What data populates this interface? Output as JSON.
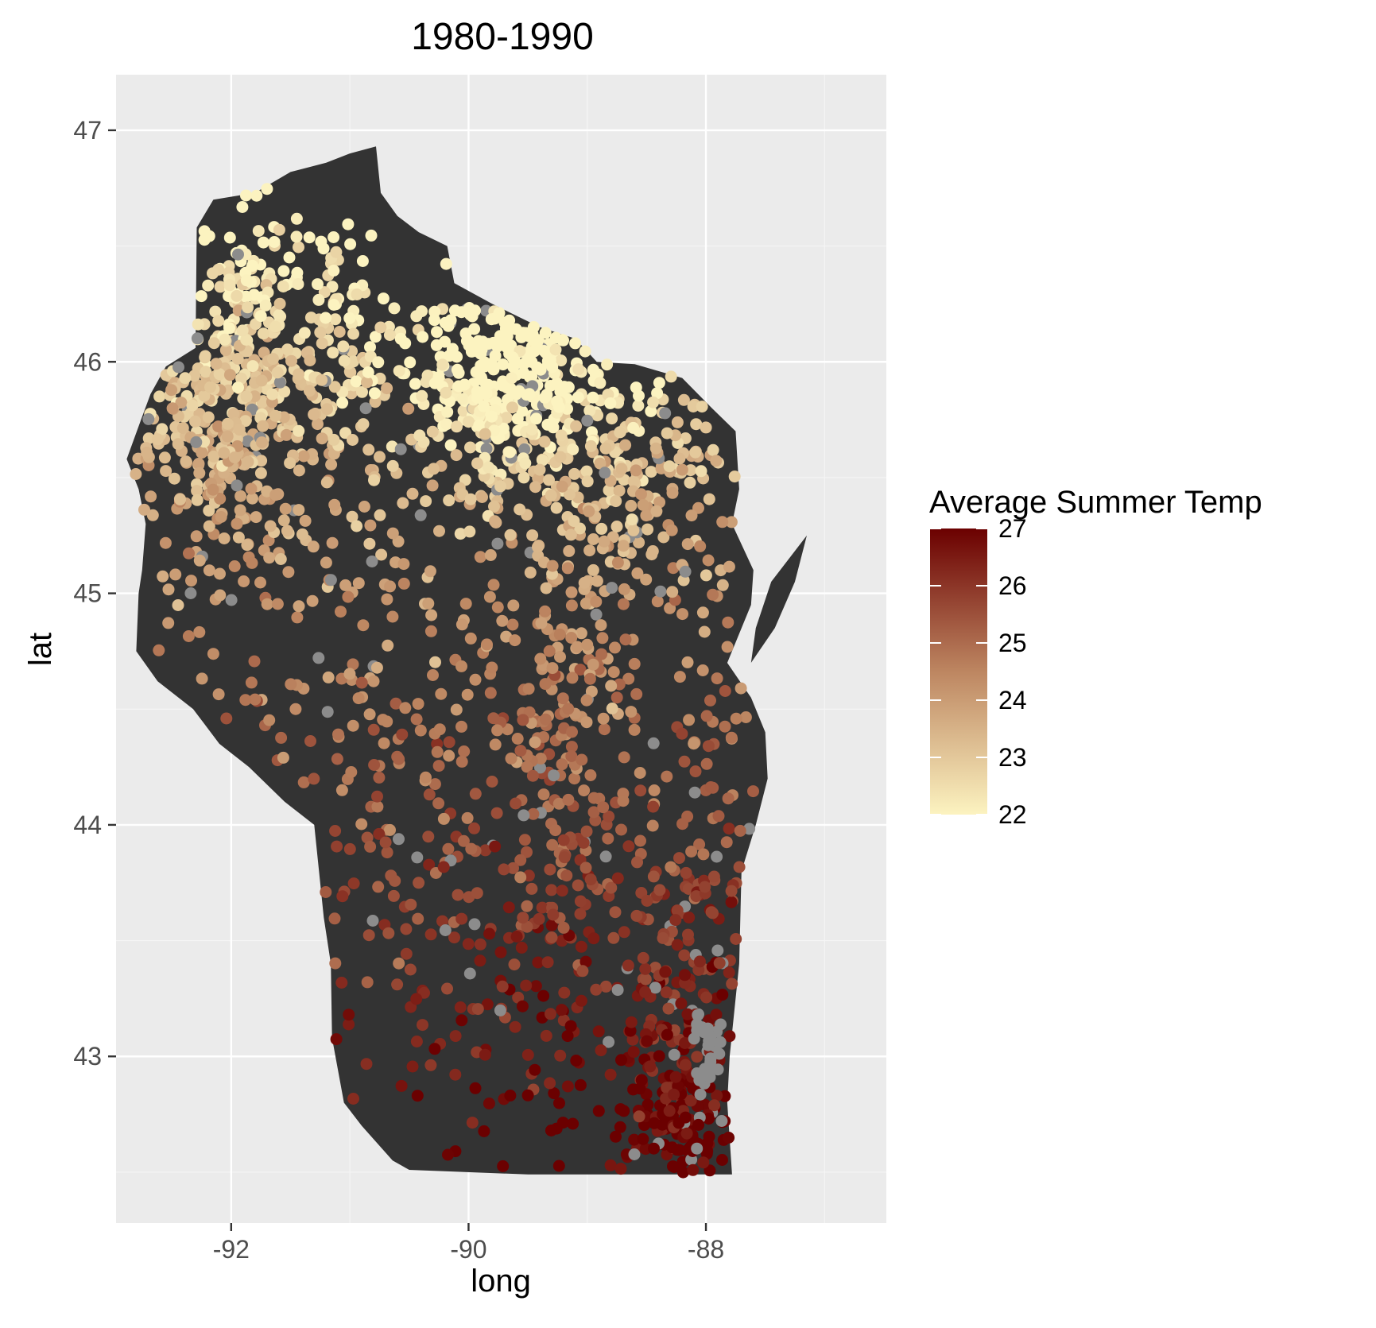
{
  "chart_data": {
    "type": "scatter",
    "title": "1980-1990",
    "xlabel": "long",
    "ylabel": "lat",
    "xlim": [
      -92.97,
      -86.48
    ],
    "ylim": [
      42.28,
      47.24
    ],
    "x_ticks": [
      -92,
      -90,
      -88
    ],
    "y_ticks": [
      43,
      44,
      45,
      46,
      47
    ],
    "x_tick_labels": [
      "-92",
      "-90",
      "-88"
    ],
    "y_tick_labels": [
      "43",
      "44",
      "45",
      "46",
      "47"
    ],
    "grid": true,
    "legend": {
      "title": "Average Summer Temp",
      "placement": "right",
      "min": 22,
      "max": 27,
      "labels": [
        "27",
        "26",
        "25",
        "24",
        "23",
        "22"
      ],
      "values": [
        27,
        26,
        25,
        24,
        23,
        22
      ]
    },
    "colors": {
      "panel_background": "#ebebeb",
      "grid_major": "#ffffff",
      "grid_minor": "#f5f5f5",
      "region_fill": "#333333",
      "missing_value": "#8c8c8c",
      "scale_low": "#fcf3c0",
      "scale_mid": "#bd8661",
      "scale_high": "#6b0000"
    },
    "region_outline": [
      [
        -92.88,
        45.58
      ],
      [
        -92.76,
        45.75
      ],
      [
        -92.68,
        45.86
      ],
      [
        -92.55,
        45.98
      ],
      [
        -92.3,
        46.06
      ],
      [
        -92.29,
        46.58
      ],
      [
        -92.15,
        46.7
      ],
      [
        -91.8,
        46.73
      ],
      [
        -91.5,
        46.82
      ],
      [
        -91.2,
        46.86
      ],
      [
        -91.0,
        46.9
      ],
      [
        -90.78,
        46.93
      ],
      [
        -90.74,
        46.73
      ],
      [
        -90.6,
        46.63
      ],
      [
        -90.42,
        46.56
      ],
      [
        -90.18,
        46.5
      ],
      [
        -90.12,
        46.34
      ],
      [
        -89.8,
        46.25
      ],
      [
        -89.4,
        46.15
      ],
      [
        -89.1,
        46.1
      ],
      [
        -88.92,
        46.0
      ],
      [
        -88.6,
        45.99
      ],
      [
        -88.2,
        45.93
      ],
      [
        -87.95,
        45.8
      ],
      [
        -87.75,
        45.7
      ],
      [
        -87.72,
        45.45
      ],
      [
        -87.78,
        45.3
      ],
      [
        -87.6,
        45.1
      ],
      [
        -87.62,
        44.95
      ],
      [
        -87.82,
        44.7
      ],
      [
        -87.62,
        44.55
      ],
      [
        -87.5,
        44.4
      ],
      [
        -87.48,
        44.2
      ],
      [
        -87.58,
        44.0
      ],
      [
        -87.7,
        43.8
      ],
      [
        -87.72,
        43.4
      ],
      [
        -87.8,
        43.0
      ],
      [
        -87.82,
        42.8
      ],
      [
        -87.78,
        42.49
      ],
      [
        -88.5,
        42.49
      ],
      [
        -89.5,
        42.49
      ],
      [
        -90.5,
        42.51
      ],
      [
        -90.64,
        42.55
      ],
      [
        -90.9,
        42.7
      ],
      [
        -91.05,
        42.8
      ],
      [
        -91.15,
        43.08
      ],
      [
        -91.16,
        43.4
      ],
      [
        -91.22,
        43.6
      ],
      [
        -91.27,
        43.85
      ],
      [
        -91.3,
        44.0
      ],
      [
        -91.55,
        44.1
      ],
      [
        -91.85,
        44.25
      ],
      [
        -92.1,
        44.35
      ],
      [
        -92.32,
        44.5
      ],
      [
        -92.62,
        44.62
      ],
      [
        -92.8,
        44.75
      ],
      [
        -92.78,
        45.0
      ],
      [
        -92.75,
        45.1
      ],
      [
        -92.72,
        45.3
      ],
      [
        -92.78,
        45.45
      ],
      [
        -92.88,
        45.58
      ]
    ],
    "peninsula_outline": [
      [
        -87.15,
        45.25
      ],
      [
        -87.45,
        45.05
      ],
      [
        -87.58,
        44.85
      ],
      [
        -87.62,
        44.7
      ],
      [
        -87.42,
        44.85
      ],
      [
        -87.25,
        45.05
      ],
      [
        -87.15,
        45.25
      ]
    ]
  }
}
